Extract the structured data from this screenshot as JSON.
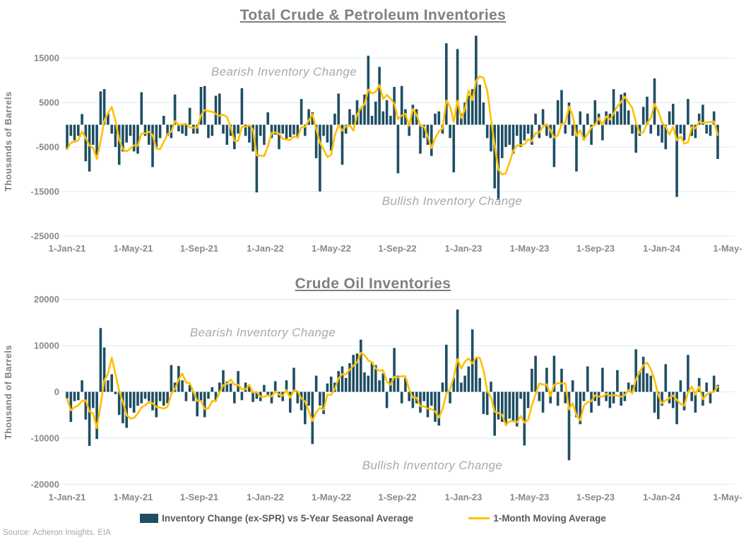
{
  "source_note": "Source: Acheron Insights. EIA",
  "legend": {
    "bar_label": "Inventory Change (ex-SPR) vs 5-Year Seasonal Average",
    "line_label": "1-Month Moving Average"
  },
  "colors": {
    "bar": "#1F4E63",
    "line": "#FFC000",
    "grid": "#DCE9F5",
    "axis_text": "#8a8a8a",
    "title_text": "#808080",
    "annotation_text": "#a9a9a9",
    "legend_text": "#595959"
  },
  "chart_data": [
    {
      "type": "bar",
      "title": "Total Crude & Petroleum Inventories",
      "ylabel": "Thousands of Barrels",
      "xlabel": "",
      "x_start": "1-Jan-21",
      "x_step": "weekly",
      "grid": "horizontal",
      "legend_position": "bottom",
      "ylim": [
        -25000,
        20500
      ],
      "y_ticks": [
        15000,
        5000,
        -5000,
        -15000,
        -25000
      ],
      "x_tick_labels": [
        "1-Jan-21",
        "1-May-21",
        "1-Sep-21",
        "1-Jan-22",
        "1-May-22",
        "1-Sep-22",
        "1-Jan-23",
        "1-May-23",
        "1-Sep-23",
        "1-Jan-24",
        "1-May-"
      ],
      "annotations": {
        "bearish": "Bearish Inventory Change",
        "bullish": "Bullish Inventory Change"
      },
      "series": [
        {
          "name": "Inventory Change (ex-SPR) vs 5-Year Seasonal Average",
          "type": "bar",
          "values": [
            -5500,
            -2500,
            -3500,
            -2500,
            2400,
            -8200,
            -10500,
            -4500,
            -7500,
            7500,
            8000,
            2500,
            -2000,
            -5000,
            -9000,
            -6000,
            -4000,
            -2500,
            -6000,
            -6500,
            7300,
            -2500,
            -4500,
            -9500,
            -5000,
            -3000,
            2000,
            -2500,
            -3000,
            6800,
            -1500,
            -2000,
            -2500,
            3800,
            -2000,
            -2000,
            8500,
            8700,
            -3000,
            -2500,
            6500,
            7000,
            -2000,
            -4500,
            -2500,
            -5500,
            -2000,
            8200,
            -2500,
            -4000,
            -6000,
            -15200,
            -2500,
            -4500,
            2800,
            -3000,
            -2200,
            -5500,
            -2000,
            -3500,
            -2800,
            -2200,
            -3000,
            5800,
            -2500,
            3500,
            2800,
            -7500,
            -15000,
            -2500,
            -4000,
            -5800,
            2500,
            7000,
            -9000,
            -2000,
            3500,
            2200,
            5500,
            3800,
            6800,
            15500,
            2000,
            5200,
            13000,
            3000,
            5500,
            2000,
            8500,
            -10900,
            8700,
            3500,
            -2500,
            4500,
            3500,
            -6500,
            -3000,
            -4500,
            -7000,
            2500,
            3000,
            -2000,
            18300,
            -3000,
            -10700,
            17000,
            2500,
            5000,
            6500,
            8000,
            20000,
            9000,
            5000,
            -3000,
            -6000,
            -14300,
            -16900,
            -7500,
            -5000,
            -4500,
            -6500,
            -2500,
            -5000,
            -3500,
            -2000,
            -4500,
            2500,
            -3000,
            3500,
            -2500,
            -3000,
            -9500,
            5500,
            7800,
            -2000,
            5000,
            -2500,
            -10500,
            3000,
            -3500,
            2500,
            -4500,
            5500,
            2500,
            -3500,
            3000,
            2500,
            8000,
            3000,
            6800,
            7200,
            3200,
            -2000,
            -6300,
            -2500,
            4000,
            6300,
            -2000,
            10400,
            -2500,
            -4000,
            -5500,
            3000,
            4700,
            -16200,
            -2000,
            -3500,
            5800,
            -2500,
            -3000,
            2500,
            4500,
            -2000,
            -2500,
            3000,
            -7700
          ]
        },
        {
          "name": "1-Month Moving Average",
          "type": "line",
          "derived": "4-week rolling mean of bar series"
        }
      ]
    },
    {
      "type": "bar",
      "title": "Crude Oil Inventories",
      "ylabel": "Thousand of Barrels",
      "xlabel": "",
      "x_start": "1-Jan-21",
      "x_step": "weekly",
      "grid": "horizontal",
      "legend_position": "bottom",
      "ylim": [
        -20000,
        20000
      ],
      "y_ticks": [
        20000,
        10000,
        0,
        -10000,
        -20000
      ],
      "x_tick_labels": [
        "1-Jan-21",
        "1-May-21",
        "1-Sep-21",
        "1-Jan-22",
        "1-May-22",
        "1-Sep-22",
        "1-Jan-23",
        "1-May-23",
        "1-Sep-23",
        "1-Jan-24",
        "1-May-"
      ],
      "annotations": {
        "bearish": "Bearish Inventory Change",
        "bullish": "Bullish Inventory Change"
      },
      "series": [
        {
          "name": "Inventory Change (ex-SPR) vs 5-Year Seasonal Average",
          "type": "bar",
          "values": [
            -1500,
            -6500,
            -2000,
            -1800,
            2500,
            -6000,
            -11700,
            -3500,
            -10200,
            13800,
            9600,
            2500,
            3800,
            -500,
            -5000,
            -6800,
            -7800,
            -3500,
            -4500,
            -3000,
            -2500,
            -1500,
            -2000,
            -4000,
            -5500,
            -2000,
            -3000,
            -2500,
            5800,
            2000,
            5600,
            2500,
            -2000,
            1500,
            -2000,
            -5300,
            -2000,
            -5500,
            -1500,
            1000,
            -2000,
            2000,
            4700,
            2200,
            1800,
            -2500,
            4500,
            -1800,
            2000,
            1500,
            -2200,
            -1500,
            -2000,
            1500,
            -1000,
            -2500,
            2300,
            -1200,
            -2000,
            2500,
            -4500,
            5200,
            -2500,
            -4000,
            -7000,
            -3000,
            -11300,
            3500,
            -3000,
            -4800,
            1800,
            3300,
            2000,
            4500,
            5500,
            3000,
            6200,
            8000,
            8300,
            11300,
            4200,
            3500,
            6500,
            5800,
            2500,
            4000,
            -3500,
            3000,
            9500,
            3500,
            -2500,
            3000,
            -2000,
            -3500,
            -2500,
            -4500,
            -2000,
            -5500,
            -3000,
            -6500,
            -7300,
            2000,
            10200,
            -2500,
            3000,
            17800,
            2000,
            3500,
            5500,
            13500,
            7300,
            3000,
            -4800,
            -5000,
            2200,
            -9500,
            -6000,
            -6500,
            -7000,
            -5800,
            -6200,
            -7500,
            -1500,
            -11600,
            -3500,
            5000,
            7800,
            -2000,
            -4500,
            5200,
            -2500,
            7800,
            -3000,
            5000,
            -2500,
            -14800,
            2500,
            -5500,
            -7000,
            -2000,
            5500,
            -4500,
            -2000,
            -3000,
            5200,
            -2000,
            -3500,
            -2500,
            4700,
            -3000,
            -2000,
            2000,
            1500,
            9200,
            4500,
            7600,
            4000,
            3500,
            -4500,
            -5900,
            -3000,
            6000,
            -2500,
            -3500,
            -7000,
            2500,
            -4000,
            8000,
            -2000,
            -4500,
            3000,
            -3000,
            2000,
            -2500,
            3500,
            1500
          ]
        },
        {
          "name": "1-Month Moving Average",
          "type": "line",
          "derived": "4-week rolling mean of bar series"
        }
      ]
    }
  ]
}
